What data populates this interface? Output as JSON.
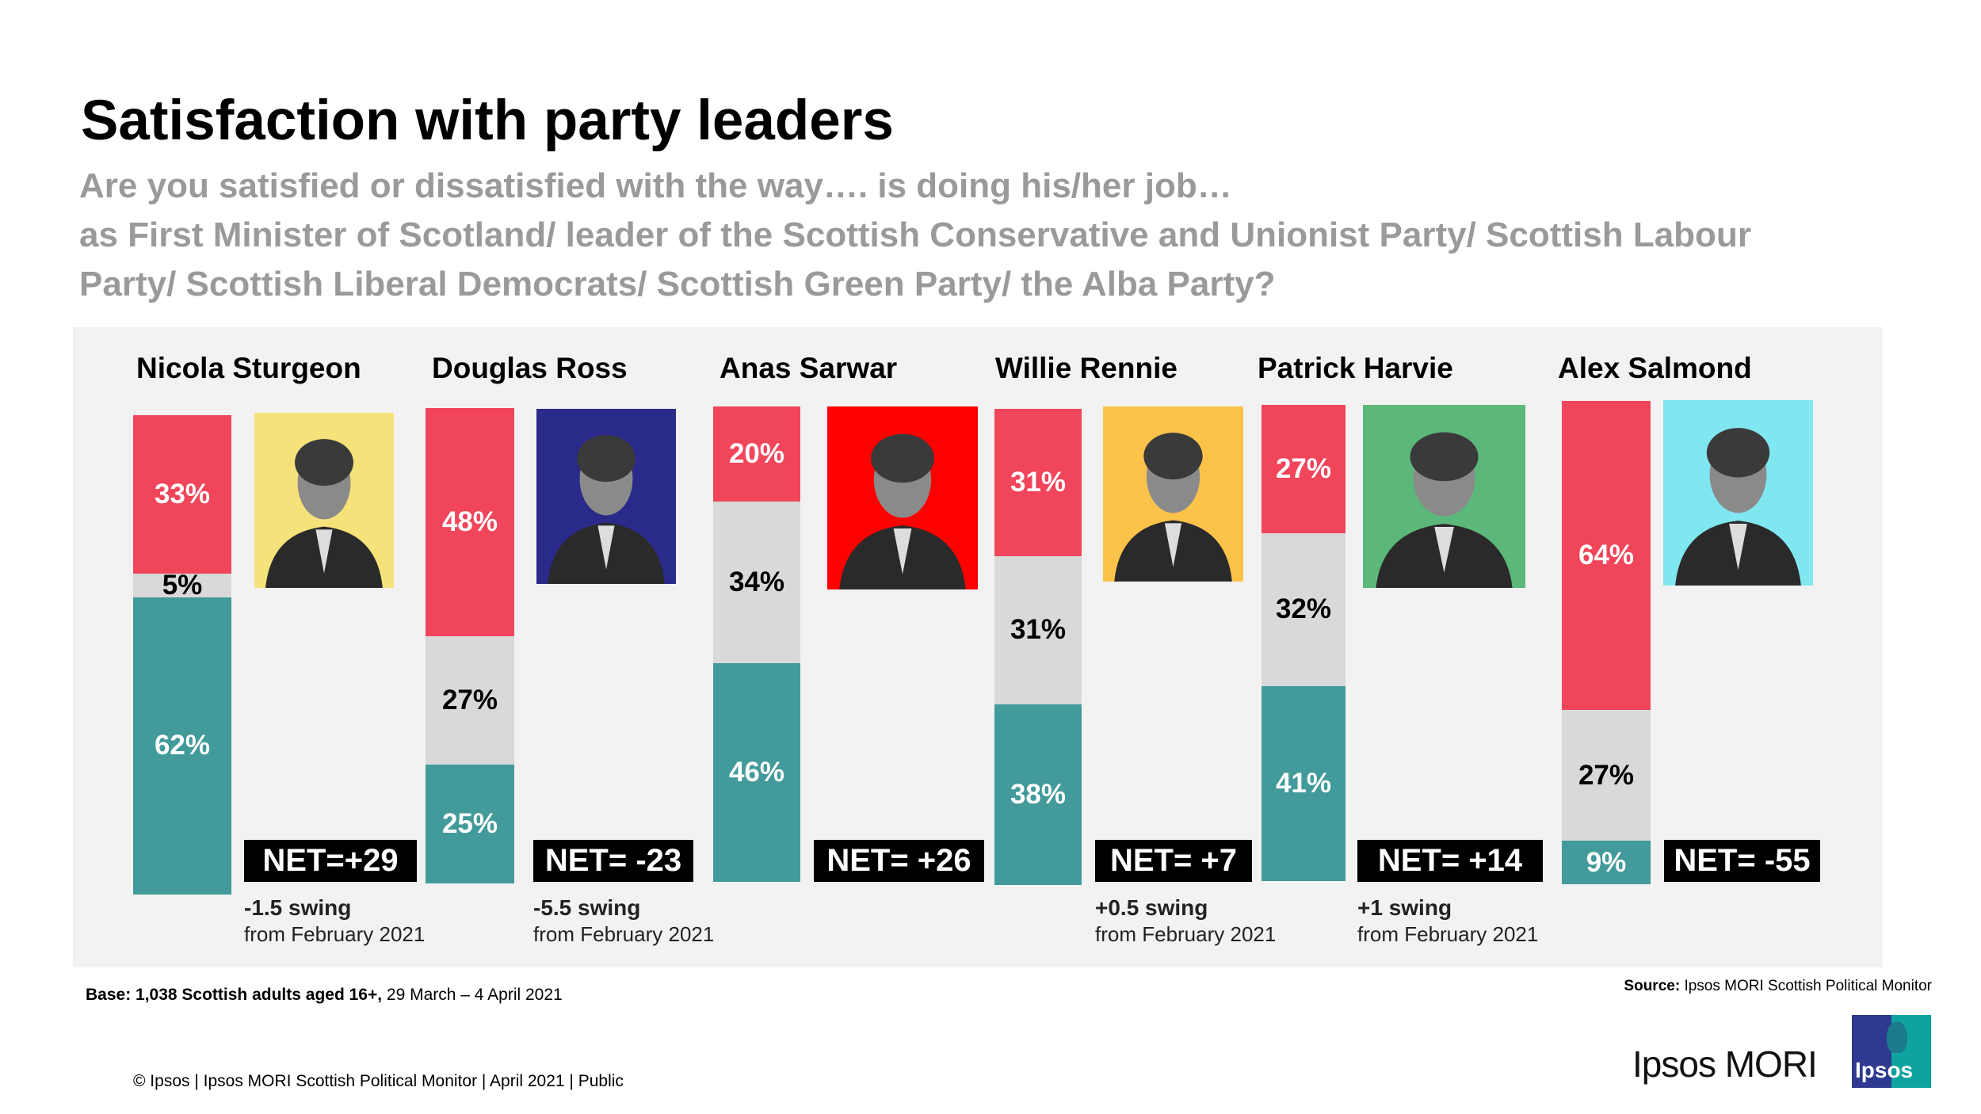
{
  "title": "Satisfaction with party leaders",
  "subtitle": [
    "Are you satisfied or dissatisfied with the way…. is doing his/her job…",
    "as First Minister of Scotland/ leader of the Scottish Conservative and Unionist Party/ Scottish Labour",
    "Party/ Scottish Liberal Democrats/ Scottish Green Party/ the Alba Party?"
  ],
  "colors": {
    "dissatisfied": "#f0455a",
    "dont_know": "#d9d9d9",
    "satisfied": "#429a9a"
  },
  "chart_data": {
    "type": "bar",
    "stacked": true,
    "series_order": [
      "dissatisfied",
      "dont_know",
      "satisfied"
    ],
    "leaders": [
      {
        "name": "Nicola Sturgeon",
        "dissatisfied": 33,
        "dont_know": 5,
        "satisfied": 62,
        "net": "NET=+29",
        "swing": "-1.5 swing",
        "swing_from": "from February 2021",
        "photo_bg": "#f5e27a"
      },
      {
        "name": "Douglas Ross",
        "dissatisfied": 48,
        "dont_know": 27,
        "satisfied": 25,
        "net": "NET= -23",
        "swing": "-5.5 swing",
        "swing_from": "from February 2021",
        "photo_bg": "#2a2a8a"
      },
      {
        "name": "Anas Sarwar",
        "dissatisfied": 20,
        "dont_know": 34,
        "satisfied": 46,
        "net": "NET= +26",
        "swing": "",
        "swing_from": "",
        "photo_bg": "#ff0000"
      },
      {
        "name": "Willie Rennie",
        "dissatisfied": 31,
        "dont_know": 31,
        "satisfied": 38,
        "net": "NET= +7",
        "swing": "+0.5 swing",
        "swing_from": "from February 2021",
        "photo_bg": "#fcc34a"
      },
      {
        "name": "Patrick Harvie",
        "dissatisfied": 27,
        "dont_know": 32,
        "satisfied": 41,
        "net": "NET= +14",
        "swing": "+1 swing",
        "swing_from": "from February 2021",
        "photo_bg": "#5cb87a"
      },
      {
        "name": "Alex Salmond",
        "dissatisfied": 64,
        "dont_know": 27,
        "satisfied": 9,
        "net": "NET= -55",
        "swing": "",
        "swing_from": "",
        "photo_bg": "#80e6f0"
      }
    ]
  },
  "footer": {
    "base_bold": "Base: 1,038 Scottish adults aged 16+,",
    "base_rest": " 29 March – 4 April 2021",
    "source_bold": "Source:",
    "source_rest": " Ipsos MORI Scottish Political Monitor",
    "copyright": "© Ipsos | Ipsos MORI Scottish Political Monitor | April  2021 | Public",
    "brand": "Ipsos MORI",
    "logo_text": "Ipsos"
  }
}
